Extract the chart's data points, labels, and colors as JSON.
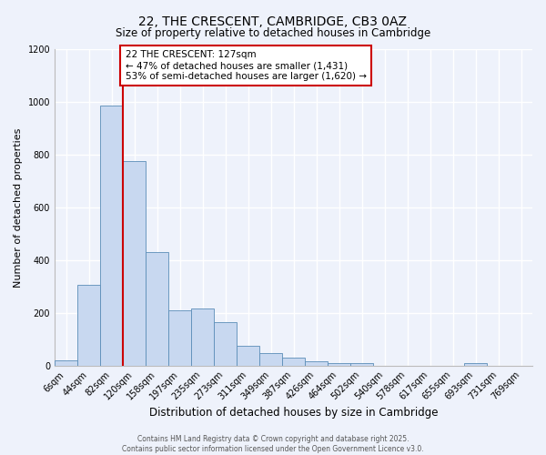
{
  "title": "22, THE CRESCENT, CAMBRIDGE, CB3 0AZ",
  "subtitle": "Size of property relative to detached houses in Cambridge",
  "xlabel": "Distribution of detached houses by size in Cambridge",
  "ylabel": "Number of detached properties",
  "bar_labels": [
    "6sqm",
    "44sqm",
    "82sqm",
    "120sqm",
    "158sqm",
    "197sqm",
    "235sqm",
    "273sqm",
    "311sqm",
    "349sqm",
    "387sqm",
    "426sqm",
    "464sqm",
    "502sqm",
    "540sqm",
    "578sqm",
    "617sqm",
    "655sqm",
    "693sqm",
    "731sqm",
    "769sqm"
  ],
  "bar_values": [
    20,
    305,
    985,
    775,
    430,
    210,
    215,
    165,
    75,
    48,
    30,
    15,
    10,
    8,
    0,
    0,
    0,
    0,
    10,
    0,
    0
  ],
  "bar_color": "#c8d8f0",
  "bar_edge_color": "#5b8db8",
  "vline_x_index": 3,
  "vline_color": "#cc0000",
  "annotation_text": "22 THE CRESCENT: 127sqm\n← 47% of detached houses are smaller (1,431)\n53% of semi-detached houses are larger (1,620) →",
  "annotation_box_color": "#ffffff",
  "annotation_box_edge": "#cc0000",
  "ylim": [
    0,
    1200
  ],
  "yticks": [
    0,
    200,
    400,
    600,
    800,
    1000,
    1200
  ],
  "background_color": "#eef2fb",
  "grid_color": "#ffffff",
  "footer_line1": "Contains HM Land Registry data © Crown copyright and database right 2025.",
  "footer_line2": "Contains public sector information licensed under the Open Government Licence v3.0.",
  "title_fontsize": 10,
  "subtitle_fontsize": 8.5,
  "ylabel_fontsize": 8,
  "xlabel_fontsize": 8.5,
  "tick_fontsize": 7,
  "footer_fontsize": 5.5,
  "annotation_fontsize": 7.5
}
